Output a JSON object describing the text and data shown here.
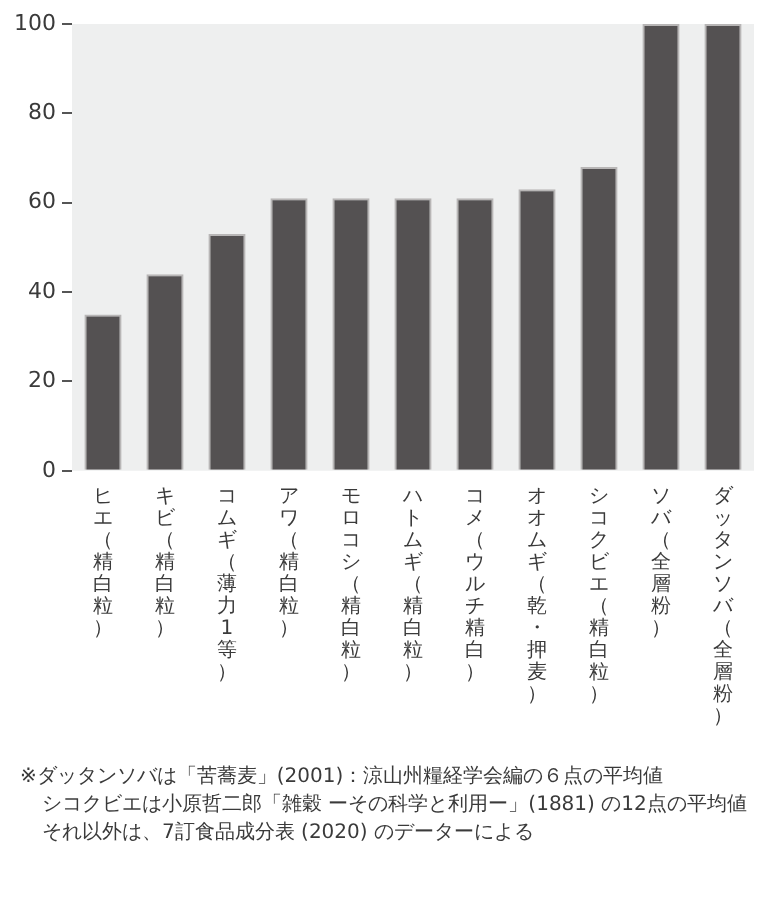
{
  "chart_data": {
    "type": "bar",
    "categories": [
      "ヒエ（精白粒）",
      "キビ（精白粒）",
      "コムギ（薄力1等）",
      "アワ（精白粒）",
      "モロコシ（精白粒）",
      "ハトムギ（精白粒）",
      "コメ（ウルチ精白）",
      "オオムギ（乾・押麦）",
      "シコクビエ（精白粒）",
      "ソバ（全層粉）",
      "ダッタンソバ（全層粉）"
    ],
    "values": [
      35,
      44,
      53,
      61,
      61,
      61,
      61,
      63,
      68,
      100,
      100
    ],
    "color": "#545152",
    "ylim": [
      0,
      100
    ],
    "yticks": [
      0,
      20,
      40,
      60,
      80,
      100
    ],
    "grid": false,
    "legend": false,
    "annotations": [
      "※ダッタンソバは「苦蕎麦」(2001)：涼山州糧経学会編の６点の平均値",
      "シコクビエは小原哲二郎「雑穀 ーその科学と利用ー」(1881) の12点の平均値",
      "それ以外は、7訂食品成分表 (2020) のデーターによる"
    ]
  }
}
